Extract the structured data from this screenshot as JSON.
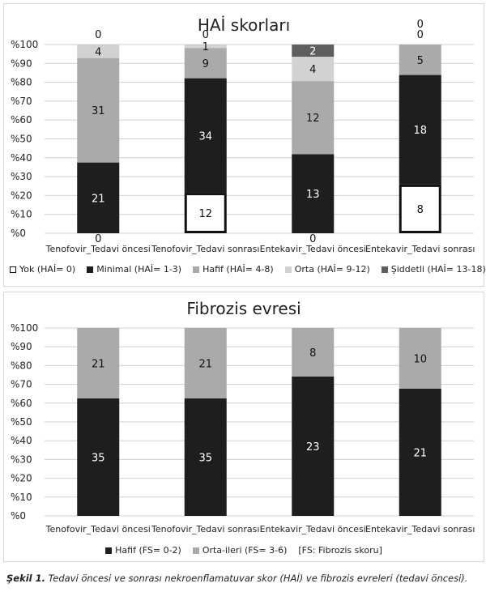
{
  "chart_data": [
    {
      "type": "bar",
      "stacked": true,
      "title": "HAİ skorları",
      "ylim": [
        0,
        100
      ],
      "yticks": [
        "%0",
        "%10",
        "%20",
        "%30",
        "%40",
        "%50",
        "%60",
        "%70",
        "%80",
        "%90",
        "%100"
      ],
      "categories": [
        "Tenofovir_Tedavi öncesi",
        "Tenofovir_Tedavi sonrası",
        "Entekavir_Tedavi öncesi",
        "Entekavir_Tedavi sonrası"
      ],
      "series": [
        {
          "name": "Yok (HAİ= 0)",
          "color": "#ffffff",
          "values": [
            0,
            12,
            0,
            8
          ]
        },
        {
          "name": "Minimal (HAİ= 1-3)",
          "color": "#1e1e1e",
          "values": [
            21,
            34,
            13,
            18
          ]
        },
        {
          "name": "Hafif (HAİ= 4-8)",
          "color": "#aaaaaa",
          "values": [
            31,
            9,
            12,
            5
          ]
        },
        {
          "name": "Orta (HAİ= 9-12)",
          "color": "#d2d2d2",
          "values": [
            4,
            1,
            4,
            0
          ]
        },
        {
          "name": "Şiddetli (HAİ= 13-18)",
          "color": "#5e5e5e",
          "values": [
            0,
            0,
            2,
            0
          ]
        }
      ],
      "legend": "bottom",
      "grid": true
    },
    {
      "type": "bar",
      "stacked": true,
      "title": "Fibrozis evresi",
      "ylim": [
        0,
        100
      ],
      "yticks": [
        "%0",
        "%10",
        "%20",
        "%30",
        "%40",
        "%50",
        "%60",
        "%70",
        "%80",
        "%90",
        "%100"
      ],
      "categories": [
        "Tenofovir_Tedavi öncesi",
        "Tenofovir_Tedavi sonrası",
        "Entekavir_Tedavi öncesi",
        "Entekavir_Tedavi sonrası"
      ],
      "series": [
        {
          "name": "Hafif (FS= 0-2)",
          "color": "#1e1e1e",
          "values": [
            35,
            35,
            23,
            21
          ]
        },
        {
          "name": "Orta-ileri (FS= 3-6)",
          "color": "#aaaaaa",
          "values": [
            21,
            21,
            8,
            10
          ]
        }
      ],
      "legend": "bottom",
      "legend_note": "[FS: Fibrozis skoru]",
      "grid": true
    }
  ],
  "caption": {
    "label": "Şekil 1.",
    "text": " Tedavi öncesi ve sonrası nekroenflamatuvar skor (HAİ) ve fibrozis evreleri (tedavi öncesi)."
  }
}
